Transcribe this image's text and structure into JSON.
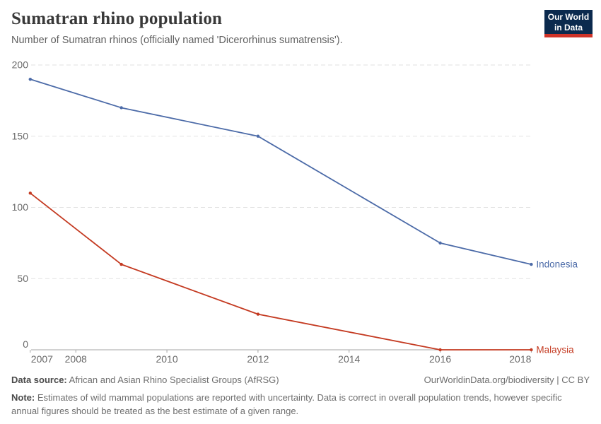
{
  "header": {
    "title": "Sumatran rhino population",
    "subtitle": "Number of Sumatran rhinos (officially named 'Dicerorhinus sumatrensis').",
    "logo": {
      "line1": "Our World",
      "line2": "in Data",
      "bg_color": "#0b2a4e",
      "bar_color": "#cf3328"
    }
  },
  "chart_data": {
    "type": "line",
    "title": "Sumatran rhino population",
    "x": [
      2007,
      2009,
      2012,
      2016,
      2018
    ],
    "series": [
      {
        "name": "Indonesia",
        "color": "#4C6BA8",
        "values": [
          190,
          170,
          150,
          75,
          60
        ]
      },
      {
        "name": "Malaysia",
        "color": "#C43A21",
        "values": [
          110,
          60,
          25,
          0,
          0
        ]
      }
    ],
    "x_ticks": [
      2007,
      2008,
      2010,
      2012,
      2014,
      2016,
      2018
    ],
    "y_ticks": [
      0,
      50,
      100,
      150,
      200
    ],
    "xlim": [
      2007,
      2018
    ],
    "ylim": [
      0,
      200
    ],
    "xlabel": "",
    "ylabel": "",
    "grid": "horizontal-dashed",
    "legend_position": "end-of-line-labels",
    "markers": true
  },
  "footer": {
    "source_label": "Data source:",
    "source_text": " African and Asian Rhino Specialist Groups (AfRSG)",
    "link_text": "OurWorldinData.org/biodiversity | CC BY",
    "note_label": "Note:",
    "note_text": " Estimates of wild mammal populations are reported with uncertainty. Data is correct in overall population trends, however specific annual figures should be treated as the best estimate of a given range."
  }
}
